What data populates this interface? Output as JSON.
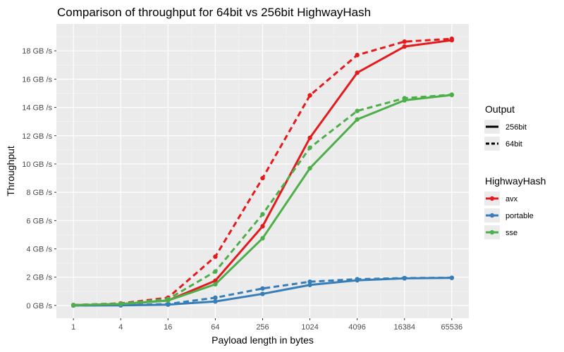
{
  "chart_data": {
    "type": "line",
    "title": "Comparison of throughput for 64bit vs 256bit HighwayHash",
    "xlabel": "Payload length in bytes",
    "ylabel": "Throughput",
    "x_scale": "log",
    "x_ticks": [
      "1",
      "4",
      "16",
      "64",
      "256",
      "1024",
      "4096",
      "16384",
      "65536"
    ],
    "x": [
      1,
      4,
      16,
      64,
      256,
      1024,
      4096,
      16384,
      65536
    ],
    "ylim": [
      -0.9,
      19.9
    ],
    "y_ticks": [
      0,
      2,
      4,
      6,
      8,
      10,
      12,
      14,
      16,
      18
    ],
    "y_tick_labels": [
      "0 GB /s",
      "2 GB /s",
      "4 GB /s",
      "6 GB /s",
      "8 GB /s",
      "10 GB /s",
      "12 GB /s",
      "14 GB /s",
      "16 GB /s",
      "18 GB /s"
    ],
    "grid": true,
    "legend_placement": "right",
    "legend_output": {
      "title": "Output",
      "entries": [
        {
          "label": "256bit",
          "linestyle": "solid"
        },
        {
          "label": "64bit",
          "linestyle": "dashed"
        }
      ]
    },
    "legend_hash": {
      "title": "HighwayHash",
      "entries": [
        {
          "label": "avx",
          "color": "#e41a1c"
        },
        {
          "label": "portable",
          "color": "#377eb8"
        },
        {
          "label": "sse",
          "color": "#4daf4a"
        }
      ]
    },
    "series": [
      {
        "hash": "avx",
        "output": "256bit",
        "color": "#e41a1c",
        "dashed": false,
        "values": [
          0.02,
          0.1,
          0.35,
          1.75,
          5.6,
          11.85,
          16.45,
          18.3,
          18.75
        ]
      },
      {
        "hash": "avx",
        "output": "64bit",
        "color": "#e41a1c",
        "dashed": true,
        "values": [
          0.03,
          0.15,
          0.55,
          3.45,
          9.0,
          14.85,
          17.7,
          18.65,
          18.85
        ]
      },
      {
        "hash": "portable",
        "output": "256bit",
        "color": "#377eb8",
        "dashed": false,
        "values": [
          0.0,
          0.01,
          0.06,
          0.28,
          0.82,
          1.45,
          1.78,
          1.92,
          1.95
        ]
      },
      {
        "hash": "portable",
        "output": "64bit",
        "color": "#377eb8",
        "dashed": true,
        "values": [
          0.0,
          0.02,
          0.1,
          0.55,
          1.2,
          1.68,
          1.86,
          1.94,
          1.96
        ]
      },
      {
        "hash": "sse",
        "output": "256bit",
        "color": "#4daf4a",
        "dashed": false,
        "values": [
          0.02,
          0.1,
          0.35,
          1.5,
          4.75,
          9.7,
          13.15,
          14.5,
          14.88
        ]
      },
      {
        "hash": "sse",
        "output": "64bit",
        "color": "#4daf4a",
        "dashed": true,
        "values": [
          0.03,
          0.13,
          0.45,
          2.4,
          6.45,
          11.15,
          13.75,
          14.65,
          14.9
        ]
      }
    ]
  }
}
